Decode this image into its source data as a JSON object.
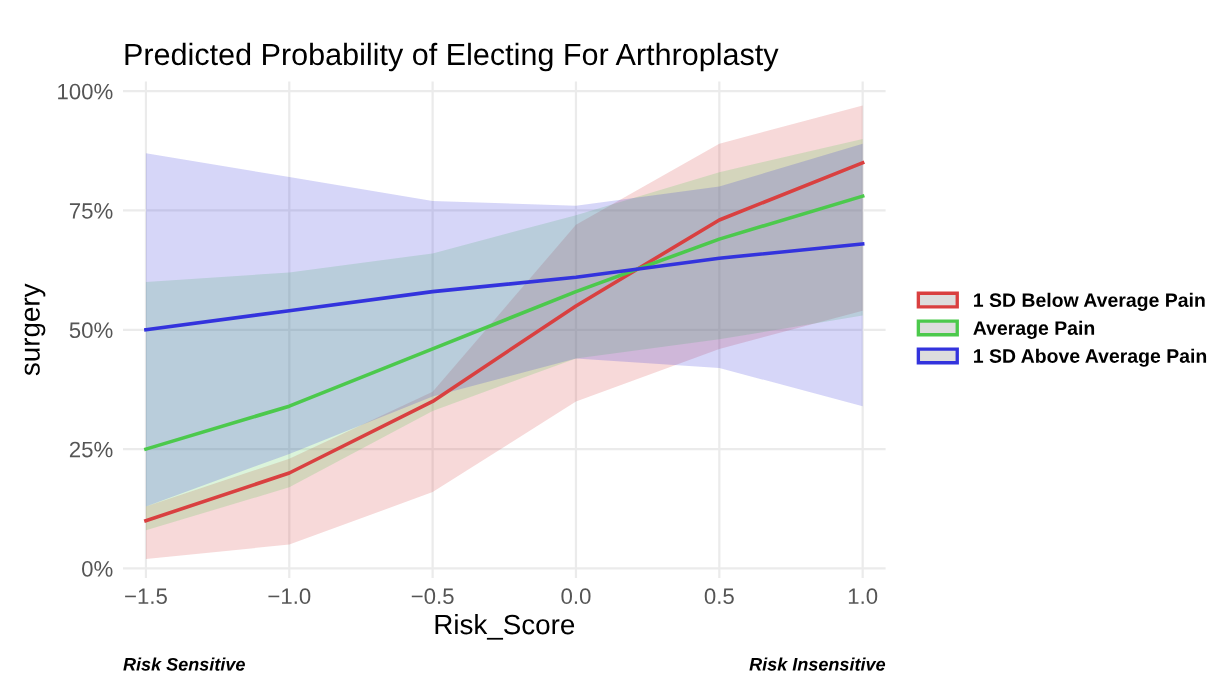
{
  "chart_data": {
    "type": "line",
    "title": "Predicted Probability of Electing For Arthroplasty",
    "xlabel": "Risk_Score",
    "ylabel": "surgery",
    "x": [
      -1.5,
      -1.0,
      -0.5,
      0.0,
      0.5,
      1.0
    ],
    "series": [
      {
        "name": "1 SD Below Average Pain",
        "color": "#d94040",
        "values": [
          0.1,
          0.2,
          0.35,
          0.55,
          0.73,
          0.85
        ],
        "lower": [
          0.02,
          0.05,
          0.16,
          0.35,
          0.46,
          0.54
        ],
        "upper": [
          0.13,
          0.23,
          0.37,
          0.72,
          0.89,
          0.97
        ]
      },
      {
        "name": "Average Pain",
        "color": "#4cc94c",
        "values": [
          0.25,
          0.34,
          0.46,
          0.58,
          0.69,
          0.78
        ],
        "lower": [
          0.08,
          0.17,
          0.33,
          0.44,
          0.48,
          0.53
        ],
        "upper": [
          0.6,
          0.62,
          0.66,
          0.74,
          0.83,
          0.9
        ]
      },
      {
        "name": "1 SD Above Average Pain",
        "color": "#3333dd",
        "values": [
          0.5,
          0.54,
          0.58,
          0.61,
          0.65,
          0.68
        ],
        "lower": [
          0.13,
          0.24,
          0.36,
          0.44,
          0.42,
          0.34
        ],
        "upper": [
          0.87,
          0.82,
          0.77,
          0.76,
          0.8,
          0.89
        ]
      }
    ],
    "xlim": [
      -1.58,
      1.08
    ],
    "ylim": [
      -0.02,
      1.02
    ],
    "xticks": [
      {
        "value": -1.5,
        "label": "−1.5"
      },
      {
        "value": -1.0,
        "label": "−1.0"
      },
      {
        "value": -0.5,
        "label": "−0.5"
      },
      {
        "value": 0.0,
        "label": "0.0"
      },
      {
        "value": 0.5,
        "label": "0.5"
      },
      {
        "value": 1.0,
        "label": "1.0"
      }
    ],
    "yticks": [
      {
        "value": 0,
        "label": "0%"
      },
      {
        "value": 0.25,
        "label": "25%"
      },
      {
        "value": 0.5,
        "label": "50%"
      },
      {
        "value": 0.75,
        "label": "75%"
      },
      {
        "value": 1.0,
        "label": "100%"
      }
    ],
    "annotations": [
      "Risk Sensitive",
      "Risk Insensitive"
    ],
    "grid": true,
    "legend": "right",
    "line_style": "solid",
    "marker": "none"
  }
}
